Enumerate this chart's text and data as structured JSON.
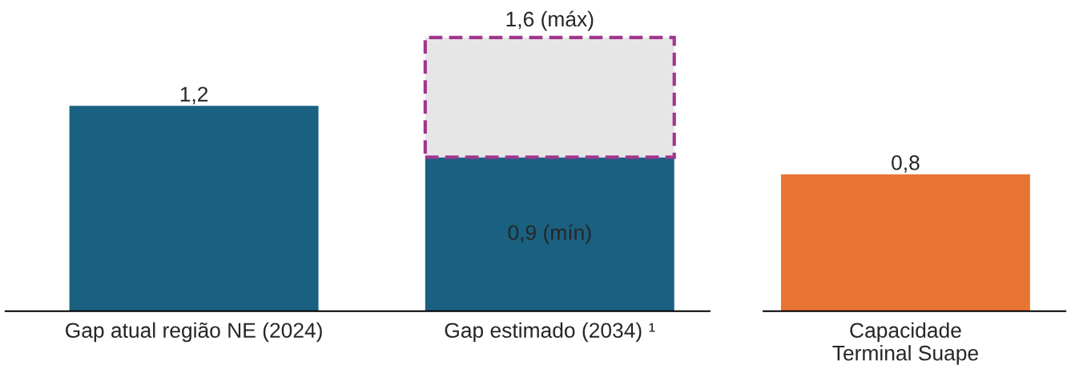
{
  "chart_data": {
    "type": "bar",
    "stacked": true,
    "categories": [
      "Gap atual região NE (2024)",
      "Gap estimado (2034) ¹",
      "Capacidade\nTerminal Suape"
    ],
    "series": [
      {
        "colors": [
          "#1a6080",
          "#1a6080",
          "#e87434"
        ],
        "values": [
          1.2,
          0.9,
          0.8
        ],
        "value_labels": [
          "1,2",
          "0,9 (mín)",
          "0,8"
        ]
      },
      {
        "color": "#e6e6e6",
        "line_style": "dashed",
        "values": [
          null,
          0.7,
          null
        ]
      }
    ],
    "totals": [
      null,
      "1,6 (máx)",
      null
    ],
    "grid": false,
    "legend": false,
    "tick_labels": "x"
  }
}
